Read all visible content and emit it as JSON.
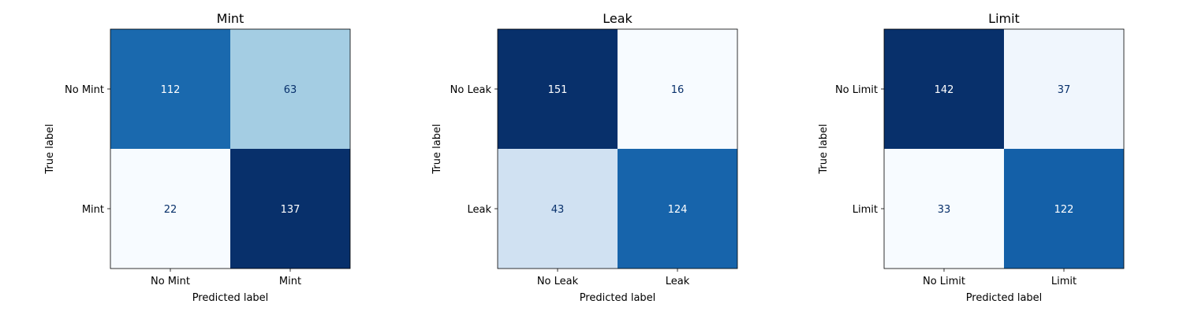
{
  "chart_data": [
    {
      "type": "heatmap",
      "title": "Mint",
      "xlabel": "Predicted label",
      "ylabel": "True label",
      "x_categories": [
        "No Mint",
        "Mint"
      ],
      "y_categories": [
        "No Mint",
        "Mint"
      ],
      "values": [
        [
          112,
          63
        ],
        [
          22,
          137
        ]
      ],
      "colormap": "Blues"
    },
    {
      "type": "heatmap",
      "title": "Leak",
      "xlabel": "Predicted label",
      "ylabel": "True label",
      "x_categories": [
        "No Leak",
        "Leak"
      ],
      "y_categories": [
        "No Leak",
        "Leak"
      ],
      "values": [
        [
          151,
          16
        ],
        [
          43,
          124
        ]
      ],
      "colormap": "Blues"
    },
    {
      "type": "heatmap",
      "title": "Limit",
      "xlabel": "Predicted label",
      "ylabel": "True label",
      "x_categories": [
        "No Limit",
        "Limit"
      ],
      "y_categories": [
        "No Limit",
        "Limit"
      ],
      "values": [
        [
          142,
          37
        ],
        [
          33,
          122
        ]
      ],
      "colormap": "Blues"
    }
  ]
}
